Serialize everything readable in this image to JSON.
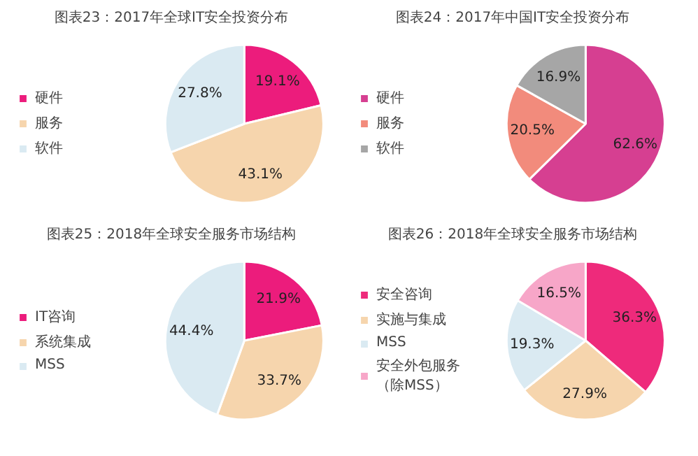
{
  "chart_data": [
    {
      "type": "pie",
      "title": "图表23：2017年全球IT安全投资分布",
      "categories": [
        "硬件",
        "服务",
        "软件"
      ],
      "values": [
        19.1,
        43.1,
        27.8
      ],
      "colors": [
        "#ec1c7c",
        "#f6d5ad",
        "#daeaf2"
      ],
      "value_labels": [
        "19.1%",
        "43.1%",
        "27.8%"
      ],
      "legend": "left"
    },
    {
      "type": "pie",
      "title": "图表24：2017年中国IT安全投资分布",
      "categories": [
        "硬件",
        "服务",
        "软件"
      ],
      "values": [
        62.6,
        20.5,
        16.9
      ],
      "colors": [
        "#d63f91",
        "#f28b7c",
        "#a6a6a6"
      ],
      "value_labels": [
        "62.6%",
        "20.5%",
        "16.9%"
      ],
      "legend": "left"
    },
    {
      "type": "pie",
      "title": "图表25：2018年全球安全服务市场结构",
      "categories": [
        "IT咨询",
        "系统集成",
        "MSS"
      ],
      "values": [
        21.9,
        33.7,
        44.4
      ],
      "colors": [
        "#ec1c7c",
        "#f6d5ad",
        "#daeaf2"
      ],
      "value_labels": [
        "21.9%",
        "33.7%",
        "44.4%"
      ],
      "legend": "left"
    },
    {
      "type": "pie",
      "title": "图表26：2018年全球安全服务市场结构",
      "categories": [
        "安全咨询",
        "实施与集成",
        "MSS",
        "安全外包服务（除MSS）"
      ],
      "values": [
        36.3,
        27.9,
        19.3,
        16.5
      ],
      "colors": [
        "#ee2a7b",
        "#f6d5ad",
        "#daeaf2",
        "#f7a6c8"
      ],
      "value_labels": [
        "36.3%",
        "27.9%",
        "19.3%",
        "16.5%"
      ],
      "legend": "left"
    }
  ]
}
